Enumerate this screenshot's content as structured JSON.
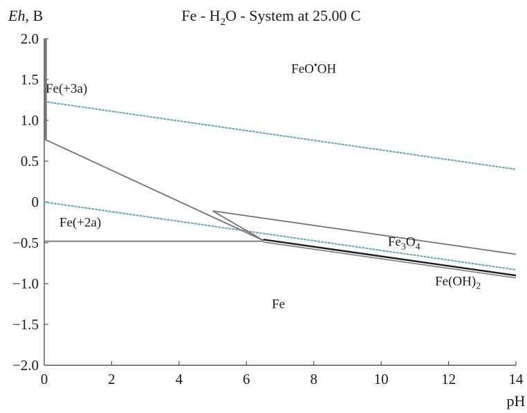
{
  "chart_data": {
    "type": "line",
    "title_parts": {
      "pre": "Fe - H",
      "sub": "2",
      "post": "O - System at 25.00 C"
    },
    "ylabel_parts": {
      "ital": "Eh",
      "post": ", B"
    },
    "xlabel": "pH",
    "xlim": [
      0,
      14
    ],
    "ylim": [
      -2.0,
      2.0
    ],
    "xticks": [
      0,
      2,
      4,
      6,
      8,
      10,
      12,
      14
    ],
    "xtick_labels": [
      "0",
      "2",
      "4",
      "6",
      "8",
      "10",
      "12",
      "14"
    ],
    "yticks": [
      2.0,
      1.5,
      1.0,
      0.5,
      0,
      -0.5,
      -1.0,
      -1.5,
      -2.0
    ],
    "ytick_labels": [
      "2.0",
      "1.5",
      "1.0",
      "0.5",
      "0",
      "−0.5",
      "−1.0",
      "−1.5",
      "−2.0"
    ],
    "boundaries": [
      {
        "id": "fe3-vertical",
        "color": "#777777",
        "x": [
          0.04,
          0.04
        ],
        "y": [
          0.77,
          2.0
        ]
      },
      {
        "id": "fe2-feooh",
        "color": "#777777",
        "x": [
          0,
          6.5
        ],
        "y": [
          0.77,
          -0.47
        ]
      },
      {
        "id": "fe-fe2",
        "color": "#777777",
        "x": [
          0,
          6.5
        ],
        "y": [
          -0.48,
          -0.48
        ]
      },
      {
        "id": "fe3o4-feooh",
        "color": "#777777",
        "x": [
          5.0,
          14
        ],
        "y": [
          -0.11,
          -0.64
        ]
      },
      {
        "id": "fe2-fe3o4",
        "color": "#777777",
        "x": [
          5.0,
          6.5
        ],
        "y": [
          -0.11,
          -0.47
        ]
      },
      {
        "id": "fe3o4-feoh2",
        "color": "#1a1a1a",
        "x": [
          6.5,
          14
        ],
        "y": [
          -0.46,
          -0.9
        ]
      },
      {
        "id": "fe-feoh2",
        "color": "#888888",
        "x": [
          6.5,
          14
        ],
        "y": [
          -0.49,
          -0.93
        ]
      }
    ],
    "water_lines": [
      {
        "id": "o2-stability",
        "color": "#6aaab0",
        "x": [
          0,
          14
        ],
        "y": [
          1.23,
          0.4
        ]
      },
      {
        "id": "h2-stability",
        "color": "#6aaab0",
        "x": [
          0,
          14
        ],
        "y": [
          0.0,
          -0.83
        ]
      }
    ],
    "region_labels": [
      {
        "id": "label-feooh",
        "parts": [
          [
            "FeO",
            ""
          ],
          [
            "•",
            "sup"
          ],
          [
            "OH",
            ""
          ]
        ],
        "x": 8.0,
        "y": 1.58,
        "anchor": "middle"
      },
      {
        "id": "label-fe3a",
        "parts": [
          [
            "Fe(+3a)",
            ""
          ]
        ],
        "x": 0.04,
        "y": 1.34,
        "anchor": "start"
      },
      {
        "id": "label-fe2a",
        "parts": [
          [
            "Fe(+2a)",
            ""
          ]
        ],
        "x": 0.45,
        "y": -0.3,
        "anchor": "start"
      },
      {
        "id": "label-fe3o4",
        "parts": [
          [
            "Fe",
            ""
          ],
          [
            "3",
            "sub"
          ],
          [
            "O",
            ""
          ],
          [
            "4",
            "sub"
          ]
        ],
        "x": 10.2,
        "y": -0.54,
        "anchor": "start"
      },
      {
        "id": "label-feoh2",
        "parts": [
          [
            "Fe(OH)",
            ""
          ],
          [
            "2",
            "sub"
          ]
        ],
        "x": 11.6,
        "y": -1.02,
        "anchor": "start"
      },
      {
        "id": "label-fe",
        "parts": [
          [
            "Fe",
            ""
          ]
        ],
        "x": 6.95,
        "y": -1.3,
        "anchor": "middle"
      }
    ]
  }
}
